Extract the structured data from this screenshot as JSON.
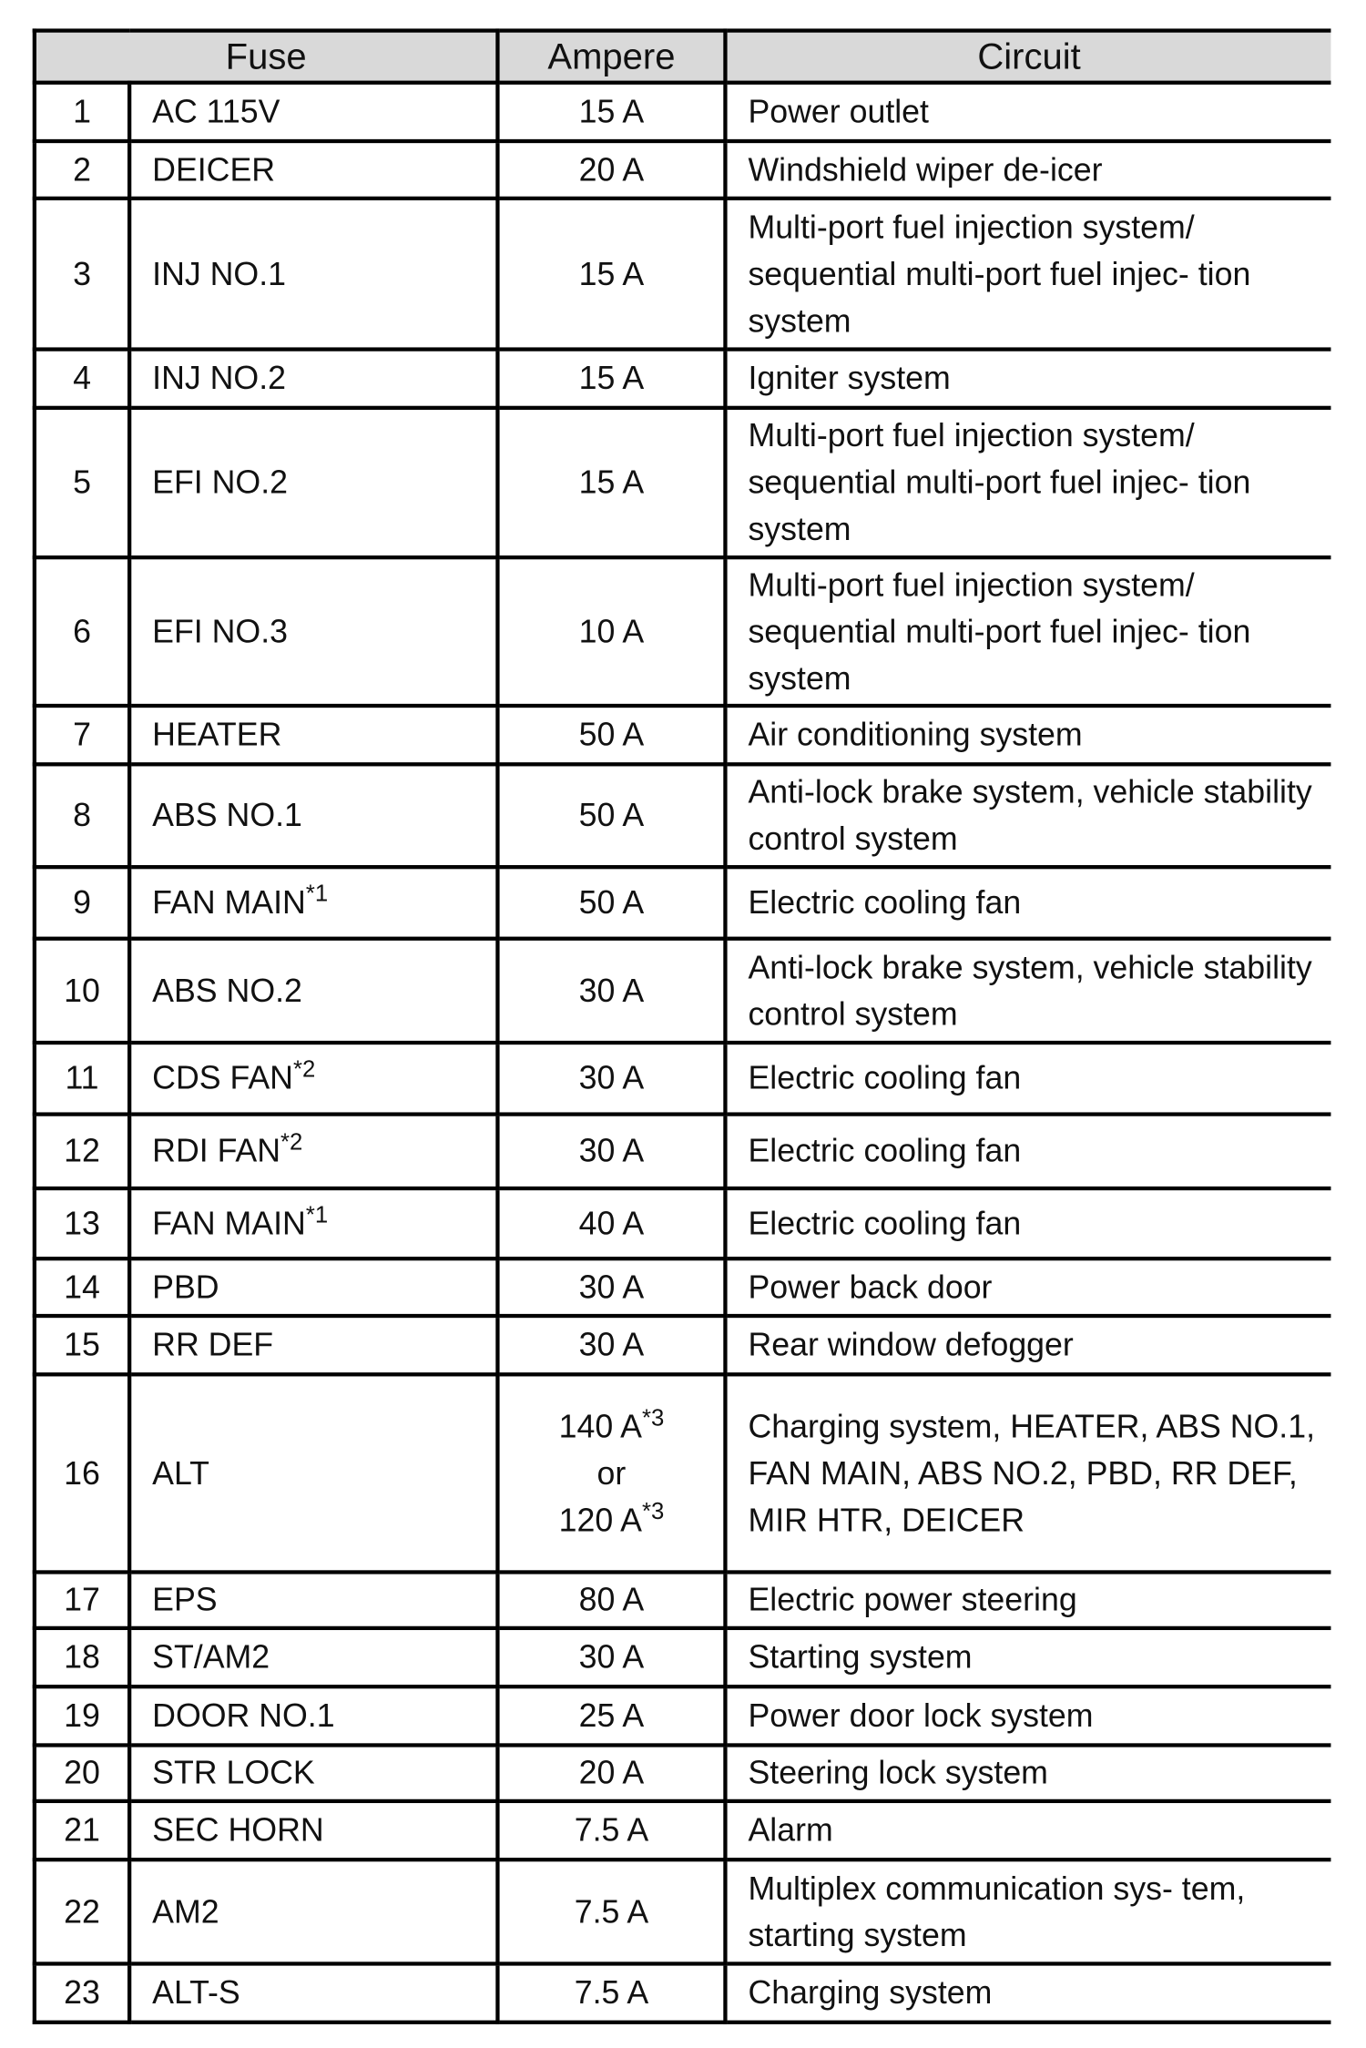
{
  "headers": {
    "fuse": "Fuse",
    "ampere": "Ampere",
    "circuit": "Circuit"
  },
  "rows": [
    {
      "no": "1",
      "fuse": "AC 115V",
      "note": "",
      "ampere": "15 A",
      "circuit": "Power outlet"
    },
    {
      "no": "2",
      "fuse": "DEICER",
      "note": "",
      "ampere": "20 A",
      "circuit": "Windshield wiper de-icer"
    },
    {
      "no": "3",
      "fuse": "INJ NO.1",
      "note": "",
      "ampere": "15 A",
      "circuit": "Multi-port fuel injection system/ sequential multi-port fuel injec- tion system"
    },
    {
      "no": "4",
      "fuse": "INJ NO.2",
      "note": "",
      "ampere": "15 A",
      "circuit": "Igniter system"
    },
    {
      "no": "5",
      "fuse": "EFI NO.2",
      "note": "",
      "ampere": "15 A",
      "circuit": "Multi-port fuel injection system/ sequential multi-port fuel injec- tion system"
    },
    {
      "no": "6",
      "fuse": "EFI NO.3",
      "note": "",
      "ampere": "10 A",
      "circuit": "Multi-port fuel injection system/ sequential multi-port fuel injec- tion system"
    },
    {
      "no": "7",
      "fuse": "HEATER",
      "note": "",
      "ampere": "50 A",
      "circuit": "Air conditioning system"
    },
    {
      "no": "8",
      "fuse": "ABS NO.1",
      "note": "",
      "ampere": "50 A",
      "circuit": "Anti-lock brake system, vehicle stability control system"
    },
    {
      "no": "9",
      "fuse": "FAN MAIN",
      "note": "*1",
      "ampere": "50 A",
      "circuit": "Electric cooling fan"
    },
    {
      "no": "10",
      "fuse": "ABS NO.2",
      "note": "",
      "ampere": "30 A",
      "circuit": "Anti-lock brake system, vehicle stability control system"
    },
    {
      "no": "11",
      "fuse": "CDS FAN",
      "note": "*2",
      "ampere": "30 A",
      "circuit": "Electric cooling fan"
    },
    {
      "no": "12",
      "fuse": "RDI FAN",
      "note": "*2",
      "ampere": "30 A",
      "circuit": "Electric cooling fan"
    },
    {
      "no": "13",
      "fuse": "FAN MAIN",
      "note": "*1",
      "ampere": "40 A",
      "circuit": "Electric cooling fan"
    },
    {
      "no": "14",
      "fuse": "PBD",
      "note": "",
      "ampere": "30 A",
      "circuit": "Power back door"
    },
    {
      "no": "15",
      "fuse": "RR DEF",
      "note": "",
      "ampere": "30 A",
      "circuit": "Rear window defogger"
    },
    {
      "no": "16",
      "fuse": "ALT",
      "note": "",
      "ampere": "140 A",
      "ampere_note": "*3",
      "ampere_or": "or",
      "ampere_alt": "120 A",
      "ampere_alt_note": "*3",
      "circuit": "Charging system, HEATER, ABS NO.1, FAN MAIN, ABS NO.2, PBD, RR DEF, MIR HTR, DEICER"
    },
    {
      "no": "17",
      "fuse": "EPS",
      "note": "",
      "ampere": "80 A",
      "circuit": "Electric power steering"
    },
    {
      "no": "18",
      "fuse": "ST/AM2",
      "note": "",
      "ampere": "30 A",
      "circuit": "Starting system"
    },
    {
      "no": "19",
      "fuse": "DOOR NO.1",
      "note": "",
      "ampere": "25 A",
      "circuit": "Power door lock system"
    },
    {
      "no": "20",
      "fuse": "STR LOCK",
      "note": "",
      "ampere": "20 A",
      "circuit": "Steering lock system"
    },
    {
      "no": "21",
      "fuse": "SEC HORN",
      "note": "",
      "ampere": "7.5 A",
      "circuit": "Alarm"
    },
    {
      "no": "22",
      "fuse": "AM2",
      "note": "",
      "ampere": "7.5 A",
      "circuit": "Multiplex communication sys- tem, starting system"
    },
    {
      "no": "23",
      "fuse": "ALT-S",
      "note": "",
      "ampere": "7.5 A",
      "circuit": "Charging system"
    }
  ]
}
